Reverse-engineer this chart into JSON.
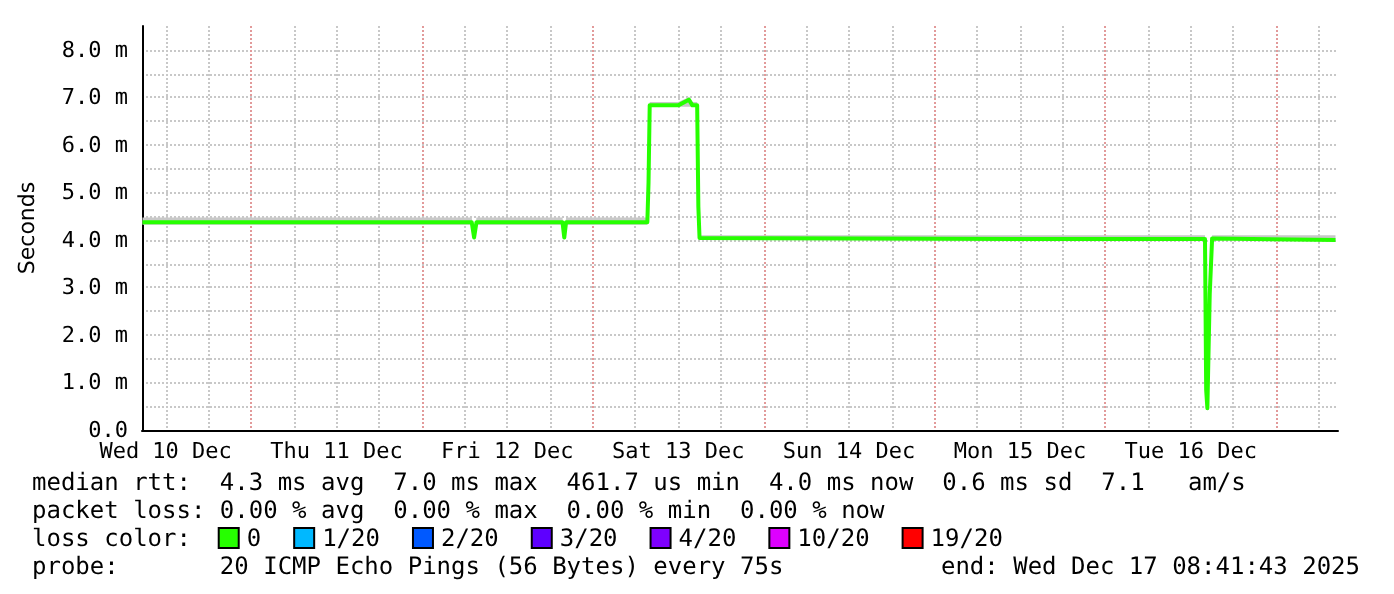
{
  "chart_data": {
    "type": "line",
    "ylabel": "Seconds",
    "legend_title": "loss color:",
    "legend": "bottom",
    "grid": true,
    "xlim": [
      "2025-12-10T08:41",
      "2025-12-17T08:41"
    ],
    "xticks": [
      {
        "value": "2025-12-10T12:00",
        "label": "Wed 10 Dec"
      },
      {
        "value": "2025-12-10T18:00",
        "label": null
      },
      {
        "value": "2025-12-11T00:00",
        "label": null
      },
      {
        "value": "2025-12-11T06:00",
        "label": null
      },
      {
        "value": "2025-12-11T12:00",
        "label": "Thu 11 Dec"
      },
      {
        "value": "2025-12-11T18:00",
        "label": null
      },
      {
        "value": "2025-12-12T00:00",
        "label": null
      },
      {
        "value": "2025-12-12T06:00",
        "label": null
      },
      {
        "value": "2025-12-12T12:00",
        "label": "Fri 12 Dec"
      },
      {
        "value": "2025-12-12T18:00",
        "label": null
      },
      {
        "value": "2025-12-13T00:00",
        "label": null
      },
      {
        "value": "2025-12-13T06:00",
        "label": null
      },
      {
        "value": "2025-12-13T12:00",
        "label": "Sat 13 Dec"
      },
      {
        "value": "2025-12-13T18:00",
        "label": null
      },
      {
        "value": "2025-12-14T00:00",
        "label": null
      },
      {
        "value": "2025-12-14T06:00",
        "label": null
      },
      {
        "value": "2025-12-14T12:00",
        "label": "Sun 14 Dec"
      },
      {
        "value": "2025-12-14T18:00",
        "label": null
      },
      {
        "value": "2025-12-15T00:00",
        "label": null
      },
      {
        "value": "2025-12-15T06:00",
        "label": null
      },
      {
        "value": "2025-12-15T12:00",
        "label": "Mon 15 Dec"
      },
      {
        "value": "2025-12-15T18:00",
        "label": null
      },
      {
        "value": "2025-12-16T00:00",
        "label": null
      },
      {
        "value": "2025-12-16T06:00",
        "label": null
      },
      {
        "value": "2025-12-16T12:00",
        "label": "Tue 16 Dec"
      },
      {
        "value": "2025-12-16T18:00",
        "label": null
      },
      {
        "value": "2025-12-17T00:00",
        "label": null
      },
      {
        "value": "2025-12-17T06:00",
        "label": null
      }
    ],
    "ylim": [
      0,
      8.5
    ],
    "yticks": [
      {
        "value": 0,
        "label": "0.0"
      },
      {
        "value": 0.5,
        "label": null
      },
      {
        "value": 1,
        "label": "1.0 m"
      },
      {
        "value": 1.5,
        "label": null
      },
      {
        "value": 2,
        "label": "2.0 m"
      },
      {
        "value": 2.5,
        "label": null
      },
      {
        "value": 3,
        "label": "3.0 m"
      },
      {
        "value": 3.5,
        "label": null
      },
      {
        "value": 4,
        "label": "4.0 m"
      },
      {
        "value": 4.5,
        "label": null
      },
      {
        "value": 5,
        "label": "5.0 m"
      },
      {
        "value": 5.5,
        "label": null
      },
      {
        "value": 6,
        "label": "6.0 m"
      },
      {
        "value": 6.5,
        "label": null
      },
      {
        "value": 7,
        "label": "7.0 m"
      },
      {
        "value": 7.5,
        "label": null
      },
      {
        "value": 8,
        "label": "8.0 m"
      }
    ],
    "x": [
      "2025-12-10T08:45",
      "2025-12-11T12:00",
      "2025-12-12T07:00",
      "2025-12-12T07:20",
      "2025-12-12T07:40",
      "2025-12-12T19:45",
      "2025-12-12T20:00",
      "2025-12-12T20:15",
      "2025-12-13T07:40",
      "2025-12-13T07:50",
      "2025-12-13T08:00",
      "2025-12-13T12:00",
      "2025-12-13T13:30",
      "2025-12-13T14:00",
      "2025-12-13T14:40",
      "2025-12-13T14:50",
      "2025-12-13T15:00",
      "2025-12-14T12:00",
      "2025-12-15T12:00",
      "2025-12-16T14:00",
      "2025-12-16T14:10",
      "2025-12-16T14:20",
      "2025-12-16T14:40",
      "2025-12-16T15:00",
      "2025-12-17T08:20"
    ],
    "series": [
      {
        "name": "0",
        "color": "#26ff00",
        "values": [
          4.37,
          4.37,
          4.37,
          4.05,
          4.37,
          4.37,
          4.05,
          4.37,
          4.37,
          5.2,
          6.83,
          6.83,
          6.95,
          6.83,
          6.83,
          4.7,
          4.04,
          4.03,
          4.02,
          4.02,
          0.84,
          0.46,
          2.86,
          4.03,
          4.0
        ],
        "lower": [
          4.32,
          4.32,
          4.32,
          4.05,
          4.32,
          4.32,
          4.05,
          4.32,
          4.32,
          5.2,
          6.8,
          6.8,
          6.8,
          6.8,
          6.8,
          4.7,
          4.0,
          4.0,
          4.0,
          4.0,
          0.84,
          0.46,
          2.86,
          4.0,
          4.0
        ],
        "upper": [
          4.47,
          4.47,
          4.47,
          4.05,
          4.47,
          4.47,
          4.05,
          4.47,
          4.47,
          5.2,
          6.9,
          6.9,
          7.0,
          6.9,
          6.9,
          4.7,
          4.1,
          4.1,
          4.1,
          4.1,
          0.84,
          0.46,
          2.86,
          4.1,
          4.1
        ]
      },
      {
        "name": "1/20",
        "color": "#00b8ff",
        "values": [
          null,
          null,
          null,
          null,
          null,
          null,
          null,
          null,
          null,
          null,
          null,
          null,
          null,
          null,
          null,
          null,
          null,
          null,
          null,
          null,
          null,
          null,
          null,
          null,
          null
        ]
      },
      {
        "name": "2/20",
        "color": "#0059ff",
        "values": [
          null,
          null,
          null,
          null,
          null,
          null,
          null,
          null,
          null,
          null,
          null,
          null,
          null,
          null,
          null,
          null,
          null,
          null,
          null,
          null,
          null,
          null,
          null,
          null,
          null
        ]
      },
      {
        "name": "3/20",
        "color": "#5e00ff",
        "values": [
          null,
          null,
          null,
          null,
          null,
          null,
          null,
          null,
          null,
          null,
          null,
          null,
          null,
          null,
          null,
          null,
          null,
          null,
          null,
          null,
          null,
          null,
          null,
          null,
          null
        ]
      },
      {
        "name": "4/20",
        "color": "#7e00ff",
        "values": [
          null,
          null,
          null,
          null,
          null,
          null,
          null,
          null,
          null,
          null,
          null,
          null,
          null,
          null,
          null,
          null,
          null,
          null,
          null,
          null,
          null,
          null,
          null,
          null,
          null
        ]
      },
      {
        "name": "10/20",
        "color": "#dd00ff",
        "values": [
          null,
          null,
          null,
          null,
          null,
          null,
          null,
          null,
          null,
          null,
          null,
          null,
          null,
          null,
          null,
          null,
          null,
          null,
          null,
          null,
          null,
          null,
          null,
          null,
          null
        ]
      },
      {
        "name": "19/20",
        "color": "#ff0000",
        "values": [
          null,
          null,
          null,
          null,
          null,
          null,
          null,
          null,
          null,
          null,
          null,
          null,
          null,
          null,
          null,
          null,
          null,
          null,
          null,
          null,
          null,
          null,
          null,
          null,
          null
        ]
      }
    ],
    "annotations": [
      "median rtt:  4.3 ms avg  7.0 ms max  461.7 us min  4.0 ms now  0.6 ms sd  7.1   am/s",
      "packet loss: 0.00 % avg  0.00 % max  0.00 % min  0.00 % now",
      "probe:       20 ICMP Echo Pings (56 Bytes) every 75s",
      "end: Wed Dec 17 08:41:43 2025"
    ]
  }
}
